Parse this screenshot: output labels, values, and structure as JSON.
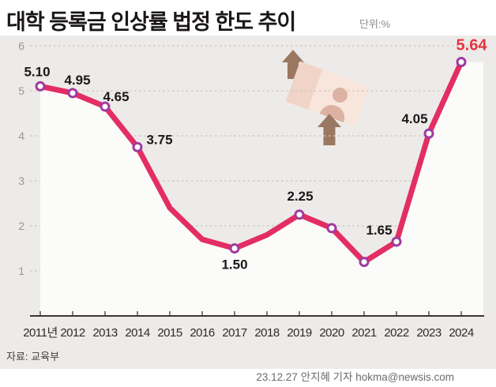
{
  "header": {
    "title": "대학 등록금 인상률 법정 한도 추이",
    "unit": "단위:%"
  },
  "footer": {
    "source": "자료: 교육부",
    "byline": "23.12.27 안지혜 기자 hokma@newsis.com"
  },
  "chart_data": {
    "type": "area",
    "title": "대학 등록금 인상률 법정 한도 추이",
    "unit_label": "단위:%",
    "categories": [
      "2011년",
      "2012",
      "2013",
      "2014",
      "2015",
      "2016",
      "2017",
      "2018",
      "2019",
      "2020",
      "2021",
      "2022",
      "2023",
      "2024"
    ],
    "values": [
      5.1,
      4.95,
      4.65,
      3.75,
      2.4,
      1.7,
      1.5,
      1.8,
      2.25,
      1.95,
      1.2,
      1.65,
      4.05,
      5.64
    ],
    "point_labels": [
      "5.10",
      "4.95",
      "4.65",
      "3.75",
      null,
      null,
      "1.50",
      null,
      "2.25",
      null,
      null,
      "1.65",
      "4.05",
      "5.64"
    ],
    "markers": [
      true,
      true,
      true,
      true,
      false,
      false,
      true,
      false,
      true,
      true,
      true,
      true,
      true,
      true
    ],
    "xlabel": "",
    "ylabel": "",
    "ylim": [
      0,
      6
    ],
    "yticks": [
      1,
      2,
      3,
      4,
      5,
      6
    ],
    "grid": "horizontal-dashed",
    "legend": "none",
    "line_color": "#e32e63",
    "marker_ring_color": "#a03a9e",
    "marker_fill": "#ffffff",
    "area_fill": "#fbfbfa",
    "plot_background": "#edebe9",
    "gridline_color": "#c7c4c1",
    "axis_color": "#3a3736",
    "label_color": "#1a1718",
    "highlight_label": "5.64",
    "highlight_label_color": "#e6333f",
    "y_tick_color": "#9a9795",
    "x_tick_color": "#2e2b2a"
  },
  "illustration": {
    "description": "money-card with person silhouette and two upward arrows",
    "arrow_color": "#9a7861",
    "card_color": "#f8e6dd",
    "card_panel_color": "#f0d4c7",
    "silhouette_color": "#dcb3a2"
  }
}
